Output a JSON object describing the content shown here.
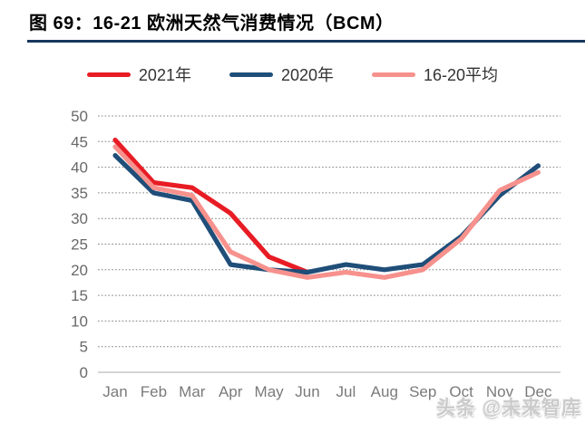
{
  "page": {
    "title": "图 69：16-21 欧洲天然气消费情况（BCM）",
    "watermark": "头条 @未来智库"
  },
  "colors": {
    "title_underline": "#17375e",
    "gridline": "#7f7f7f",
    "zero_axis": "#c6c6c6",
    "y_tick_text": "#696969",
    "x_tick_text": "#7a7a7a",
    "series_2021": "#e81c24",
    "series_2020": "#1f4e79",
    "series_avg": "#f7918d"
  },
  "chart_data": {
    "type": "line",
    "title": "16-21 欧洲天然气消费情况（BCM）",
    "categories": [
      "Jan",
      "Feb",
      "Mar",
      "Apr",
      "May",
      "Jun",
      "Jul",
      "Aug",
      "Sep",
      "Oct",
      "Nov",
      "Dec"
    ],
    "series": [
      {
        "name": "2021年",
        "color": "#e81c24",
        "values": [
          45.3,
          37,
          36,
          31,
          22.5,
          19.5,
          null,
          null,
          null,
          null,
          null,
          null
        ]
      },
      {
        "name": "2020年",
        "color": "#1f4e79",
        "values": [
          42.3,
          35,
          33.5,
          21,
          20,
          19.5,
          21,
          20,
          21,
          26.5,
          34.5,
          40.3
        ]
      },
      {
        "name": "16-20平均",
        "color": "#f7918d",
        "values": [
          44,
          36,
          34.5,
          23.5,
          20,
          18.5,
          19.5,
          18.5,
          20,
          26,
          35.5,
          39
        ]
      }
    ],
    "xlabel": "",
    "ylabel": "",
    "ylim": [
      0,
      50
    ],
    "yticks": [
      0,
      5,
      10,
      15,
      20,
      25,
      30,
      35,
      40,
      45,
      50
    ],
    "grid": "horizontal-dotted",
    "legend_position": "top"
  }
}
